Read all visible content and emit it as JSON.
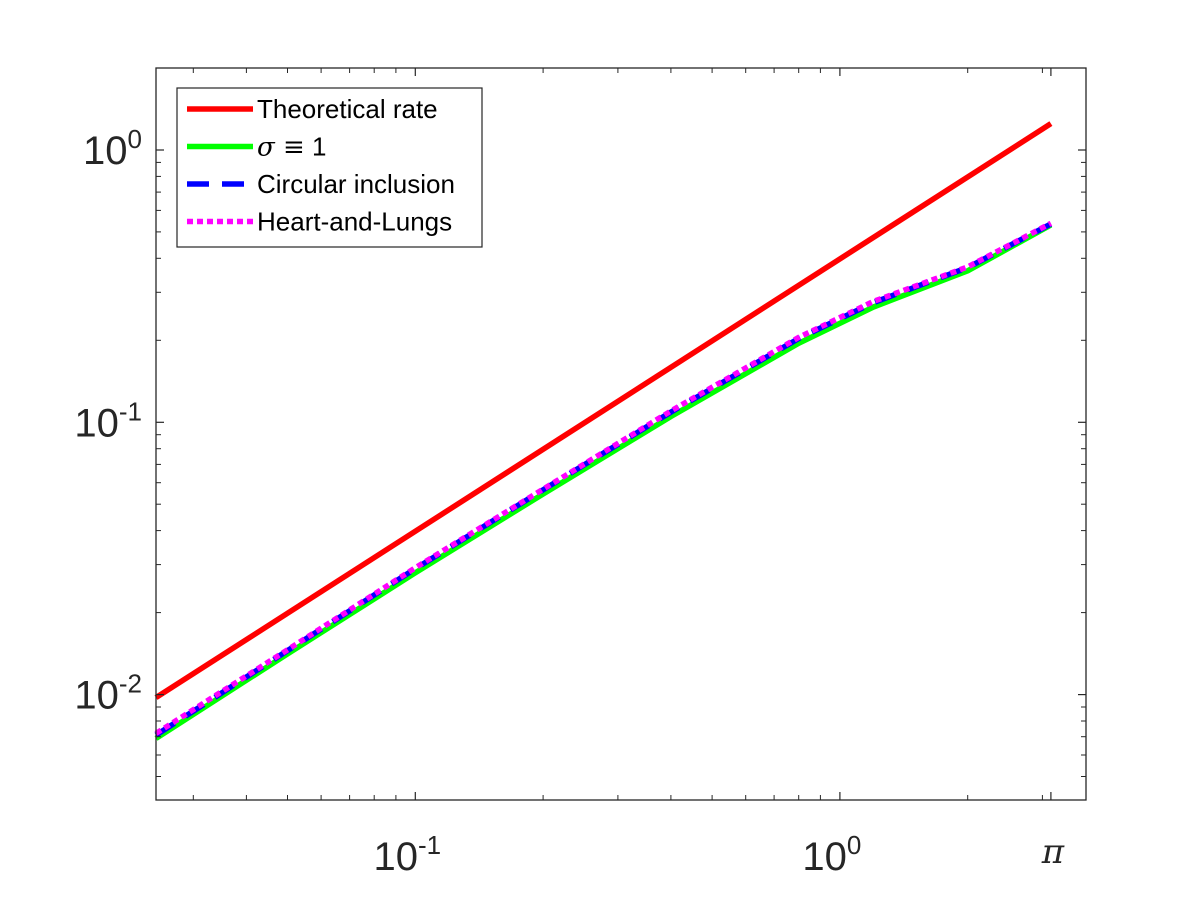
{
  "chart_data": {
    "type": "line",
    "title": "",
    "xlabel": "",
    "ylabel": "",
    "xscale": "log",
    "yscale": "log",
    "xlim": [
      0.0245,
      3.8
    ],
    "ylim": [
      0.0041,
      2.0
    ],
    "grid": false,
    "legend_position": "top-left",
    "x_ticks": [
      {
        "value": 0.1,
        "base": "10",
        "exp": "-1"
      },
      {
        "value": 1,
        "base": "10",
        "exp": "0"
      },
      {
        "value": 3.14159,
        "base": "π",
        "exp": ""
      }
    ],
    "y_ticks": [
      {
        "value": 0.01,
        "base": "10",
        "exp": "-2"
      },
      {
        "value": 0.1,
        "base": "10",
        "exp": "-1"
      },
      {
        "value": 1,
        "base": "10",
        "exp": "0"
      }
    ],
    "series": [
      {
        "name": "Theoretical rate",
        "legend_text": "Theoretical rate",
        "color": "#ff0000",
        "style": "solid",
        "x": [
          0.0245,
          3.1416
        ],
        "y": [
          0.00975,
          1.25
        ]
      },
      {
        "name": "σ ≡ 1",
        "legend_prefix": "σ ≡",
        "legend_suffix": " 1",
        "color": "#00ff00",
        "style": "solid",
        "x": [
          0.0245,
          0.05,
          0.1,
          0.2,
          0.4,
          0.8,
          1.2,
          2.0,
          3.1416
        ],
        "y": [
          0.0069,
          0.0141,
          0.028,
          0.0545,
          0.105,
          0.195,
          0.265,
          0.36,
          0.53
        ]
      },
      {
        "name": "Circular inclusion",
        "legend_text": "Circular inclusion",
        "color": "#0000ff",
        "style": "dashed",
        "x": [
          0.0245,
          0.05,
          0.1,
          0.2,
          0.4,
          0.8,
          1.2,
          2.0,
          3.1416
        ],
        "y": [
          0.0071,
          0.0145,
          0.029,
          0.0565,
          0.109,
          0.203,
          0.275,
          0.37,
          0.535
        ]
      },
      {
        "name": "Heart-and-Lungs",
        "legend_text": "Heart-and-Lungs",
        "color": "#ff00ff",
        "style": "dotted",
        "x": [
          0.0245,
          0.05,
          0.1,
          0.2,
          0.4,
          0.8,
          1.2,
          2.0,
          3.1416
        ],
        "y": [
          0.0072,
          0.0146,
          0.0292,
          0.0568,
          0.11,
          0.205,
          0.278,
          0.372,
          0.538
        ]
      }
    ]
  }
}
